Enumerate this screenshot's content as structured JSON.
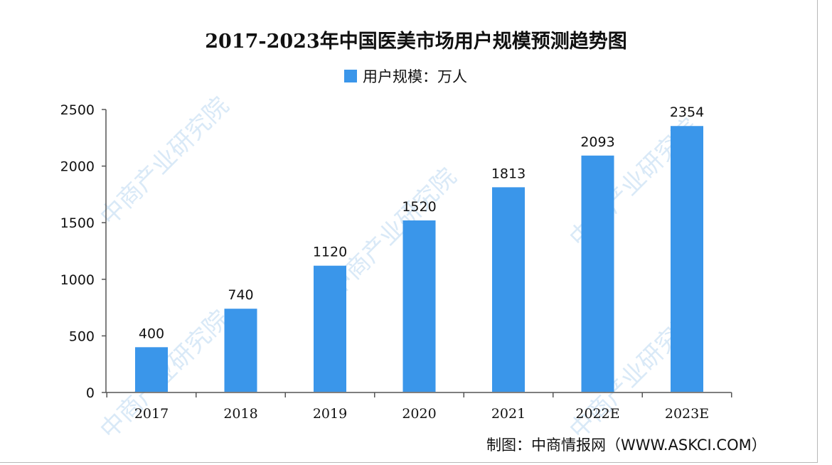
{
  "watermark": "中商产业研究院",
  "source": "制图：中商情报网（WWW.ASKCI.COM）",
  "colors": {
    "bar": "#3a96ea",
    "axis": "#555555"
  },
  "chart_data": {
    "type": "bar",
    "title": "2017-2023年中国医美市场用户规模预测趋势图",
    "legend": {
      "position": "top",
      "entries": [
        "用户规模：万人"
      ]
    },
    "categories": [
      "2017",
      "2018",
      "2019",
      "2020",
      "2021",
      "2022E",
      "2023E"
    ],
    "series": [
      {
        "name": "用户规模：万人",
        "values": [
          400,
          740,
          1120,
          1520,
          1813,
          2093,
          2354
        ]
      }
    ],
    "ylim": [
      0,
      2500
    ],
    "yticks": [
      0,
      500,
      1000,
      1500,
      2000,
      2500
    ],
    "grid": false,
    "data_labels": true
  }
}
